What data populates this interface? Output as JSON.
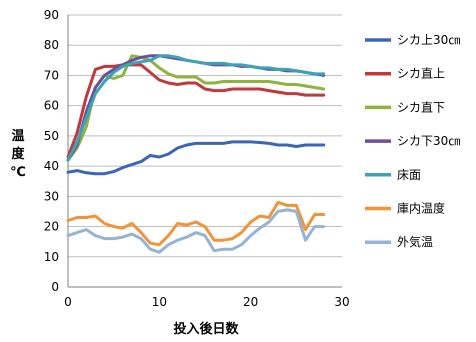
{
  "chart_data": {
    "type": "line",
    "xlabel": "投入後日数",
    "ylabel_lines": [
      "温",
      "度",
      "℃"
    ],
    "xlim": [
      0,
      30
    ],
    "ylim": [
      0,
      90
    ],
    "x_ticks": [
      0,
      10,
      20,
      30
    ],
    "y_ticks": [
      0,
      10,
      20,
      30,
      40,
      50,
      60,
      70,
      80,
      90
    ],
    "grid": "horizontal",
    "legend_position": "right",
    "x": [
      0,
      1,
      2,
      3,
      4,
      5,
      6,
      7,
      8,
      9,
      10,
      11,
      12,
      13,
      14,
      15,
      16,
      17,
      18,
      19,
      20,
      21,
      22,
      23,
      24,
      25,
      26,
      27,
      28
    ],
    "series": [
      {
        "name": "シカ上30㎝",
        "color": "#3b66b5",
        "values": [
          38,
          38.5,
          37.8,
          37.5,
          37.5,
          38.2,
          39.5,
          40.5,
          41.5,
          43.5,
          43,
          44,
          46,
          47,
          47.5,
          47.5,
          47.5,
          47.5,
          48,
          48,
          48,
          47.8,
          47.5,
          47,
          47,
          46.5,
          47,
          47,
          47
        ]
      },
      {
        "name": "シカ直上",
        "color": "#c0393b",
        "values": [
          43,
          51,
          63,
          72,
          73,
          73,
          73.5,
          73.5,
          73.5,
          71,
          68.5,
          67.5,
          67,
          67.5,
          67.5,
          65.5,
          65,
          65,
          65.5,
          65.5,
          65.5,
          65.5,
          65,
          64.5,
          64,
          64,
          63.5,
          63.5,
          63.5
        ]
      },
      {
        "name": "シカ直下",
        "color": "#8db43e",
        "values": [
          42,
          46,
          53,
          66,
          70,
          69,
          70,
          76.5,
          76,
          75,
          72.5,
          70.5,
          69.5,
          69.5,
          69.5,
          67.5,
          67.5,
          68,
          68,
          68,
          68,
          68,
          68,
          67.5,
          67,
          67,
          66.5,
          66,
          65.5
        ]
      },
      {
        "name": "シカ下30㎝",
        "color": "#6f4e9e",
        "values": [
          42,
          47,
          58,
          66,
          70,
          72,
          73.5,
          75,
          76,
          76.5,
          76.5,
          76,
          75.5,
          75,
          74.5,
          74,
          73.5,
          73.5,
          73.5,
          73,
          73,
          72.5,
          72,
          72,
          71.5,
          71.5,
          71,
          70.5,
          70
        ]
      },
      {
        "name": "床面",
        "color": "#3aa3b8",
        "values": [
          42,
          48,
          56,
          64,
          68,
          71,
          73,
          74,
          74.5,
          75,
          76.5,
          76.5,
          76,
          75,
          74.5,
          74,
          74,
          74,
          73.5,
          73.5,
          73,
          72.5,
          72.5,
          72,
          72,
          71.5,
          71,
          70.5,
          70.5
        ]
      },
      {
        "name": "庫内温度",
        "color": "#f0943a",
        "values": [
          22,
          23,
          23,
          23.5,
          21,
          20,
          19.5,
          21,
          18,
          14.5,
          14,
          17,
          21,
          20.5,
          21.5,
          20,
          15.5,
          15.5,
          16,
          18,
          21.5,
          23.5,
          23,
          28,
          27,
          27,
          19,
          24,
          24
        ]
      },
      {
        "name": "外気温",
        "color": "#95b3d7",
        "values": [
          17,
          18,
          19,
          17,
          16,
          16,
          16.5,
          17.5,
          16,
          12.5,
          11.5,
          14,
          15.5,
          16.5,
          18,
          17,
          12,
          12.5,
          12.5,
          14,
          17,
          19.5,
          21.5,
          25,
          25.5,
          25,
          15.5,
          20,
          20
        ]
      }
    ]
  }
}
